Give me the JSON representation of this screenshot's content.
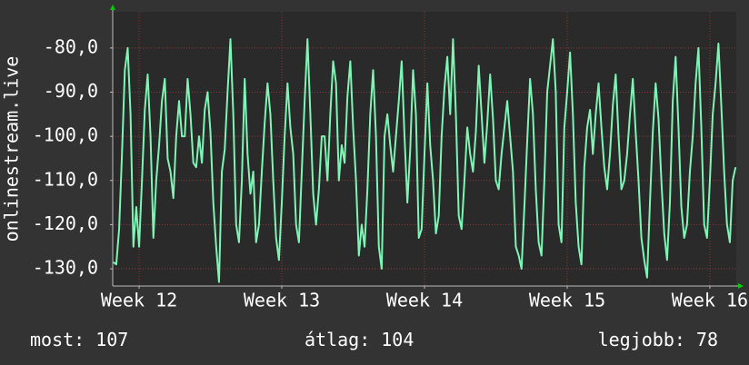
{
  "chart_data": {
    "type": "line",
    "y_label": "onlinestream.live",
    "xlim": [
      11.815,
      16.185
    ],
    "xticks": [
      {
        "value": 12,
        "label": "Week 12"
      },
      {
        "value": 13,
        "label": "Week 13"
      },
      {
        "value": 14,
        "label": "Week 14"
      },
      {
        "value": 15,
        "label": "Week 15"
      },
      {
        "value": 16,
        "label": "Week 16"
      }
    ],
    "ylim": [
      -133.9,
      -71.8
    ],
    "yticks": [
      {
        "value": -130,
        "label": "-130,0"
      },
      {
        "value": -120,
        "label": "-120,0"
      },
      {
        "value": -110,
        "label": "-110,0"
      },
      {
        "value": -100,
        "label": "-100,0"
      },
      {
        "value": -90,
        "label": "-90,0"
      },
      {
        "value": -80,
        "label": "-80,0"
      }
    ],
    "grid": true,
    "series": [
      {
        "color": "#7df5b5",
        "x": [
          11.82,
          11.84,
          11.86,
          11.88,
          11.9,
          11.92,
          11.94,
          11.96,
          11.98,
          12,
          12.02,
          12.04,
          12.06,
          12.08,
          12.1,
          12.12,
          12.14,
          12.16,
          12.18,
          12.2,
          12.22,
          12.24,
          12.26,
          12.28,
          12.3,
          12.32,
          12.34,
          12.36,
          12.38,
          12.4,
          12.42,
          12.44,
          12.46,
          12.48,
          12.5,
          12.52,
          12.54,
          12.56,
          12.58,
          12.6,
          12.62,
          12.64,
          12.66,
          12.68,
          12.7,
          12.72,
          12.74,
          12.76,
          12.78,
          12.8,
          12.82,
          12.84,
          12.86,
          12.88,
          12.9,
          12.92,
          12.94,
          12.96,
          12.98,
          13,
          13.02,
          13.04,
          13.06,
          13.08,
          13.1,
          13.12,
          13.14,
          13.16,
          13.18,
          13.2,
          13.22,
          13.24,
          13.26,
          13.28,
          13.3,
          13.32,
          13.34,
          13.36,
          13.38,
          13.4,
          13.42,
          13.44,
          13.46,
          13.48,
          13.5,
          13.52,
          13.54,
          13.56,
          13.58,
          13.6,
          13.62,
          13.64,
          13.66,
          13.68,
          13.7,
          13.72,
          13.74,
          13.76,
          13.78,
          13.8,
          13.82,
          13.84,
          13.86,
          13.88,
          13.9,
          13.92,
          13.94,
          13.96,
          13.98,
          14,
          14.02,
          14.04,
          14.06,
          14.08,
          14.1,
          14.12,
          14.14,
          14.16,
          14.18,
          14.2,
          14.22,
          14.24,
          14.26,
          14.28,
          14.3,
          14.32,
          14.34,
          14.36,
          14.38,
          14.4,
          14.42,
          14.44,
          14.46,
          14.48,
          14.5,
          14.52,
          14.54,
          14.56,
          14.58,
          14.6,
          14.62,
          14.64,
          14.66,
          14.68,
          14.7,
          14.72,
          14.74,
          14.76,
          14.78,
          14.8,
          14.82,
          14.84,
          14.86,
          14.88,
          14.9,
          14.92,
          14.94,
          14.96,
          14.98,
          15,
          15.02,
          15.04,
          15.06,
          15.08,
          15.1,
          15.12,
          15.14,
          15.16,
          15.18,
          15.2,
          15.22,
          15.24,
          15.26,
          15.28,
          15.3,
          15.32,
          15.34,
          15.36,
          15.38,
          15.4,
          15.42,
          15.44,
          15.46,
          15.48,
          15.5,
          15.52,
          15.54,
          15.56,
          15.58,
          15.6,
          15.62,
          15.64,
          15.66,
          15.68,
          15.7,
          15.72,
          15.74,
          15.76,
          15.78,
          15.8,
          15.82,
          15.84,
          15.86,
          15.88,
          15.9,
          15.92,
          15.94,
          15.96,
          15.98,
          16,
          16.02,
          16.04,
          16.06,
          16.08,
          16.1,
          16.12,
          16.14,
          16.16,
          16.18
        ],
        "values": [
          -128.5,
          -129,
          -121,
          -104,
          -85,
          -80,
          -95,
          -125,
          -116,
          -125,
          -110,
          -94,
          -86,
          -100,
          -123,
          -110,
          -102,
          -92,
          -87,
          -105,
          -108,
          -114,
          -100,
          -92,
          -100,
          -100,
          -87,
          -95,
          -106,
          -107,
          -100,
          -106,
          -94,
          -90,
          -99,
          -115,
          -125,
          -133,
          -108,
          -103,
          -90,
          -78,
          -95,
          -120,
          -124,
          -110,
          -87,
          -104,
          -113,
          -108,
          -124,
          -120,
          -108,
          -97,
          -88,
          -95,
          -110,
          -123,
          -128,
          -115,
          -100,
          -88,
          -98,
          -104,
          -120,
          -124,
          -108,
          -92,
          -78,
          -95,
          -113,
          -120,
          -112,
          -100,
          -100,
          -110,
          -95,
          -83,
          -88,
          -110,
          -102,
          -106,
          -91,
          -83,
          -98,
          -110,
          -127,
          -120,
          -125,
          -112,
          -95,
          -85,
          -100,
          -125,
          -130,
          -100,
          -95,
          -102,
          -108,
          -100,
          -92,
          -83,
          -100,
          -115,
          -103,
          -85,
          -95,
          -123,
          -121,
          -104,
          -88,
          -102,
          -110,
          -122,
          -118,
          -100,
          -89,
          -82,
          -95,
          -78,
          -95,
          -118,
          -121,
          -110,
          -98,
          -104,
          -108,
          -99,
          -84,
          -95,
          -106,
          -97,
          -86,
          -96,
          -110,
          -112,
          -104,
          -98,
          -92,
          -100,
          -108,
          -125,
          -127,
          -130,
          -116,
          -101,
          -87,
          -95,
          -112,
          -124,
          -127,
          -110,
          -90,
          -84,
          -78,
          -90,
          -120,
          -124,
          -98,
          -90,
          -81,
          -95,
          -115,
          -125,
          -129,
          -107,
          -98,
          -94,
          -104,
          -95,
          -88,
          -98,
          -107,
          -112,
          -104,
          -93,
          -86,
          -100,
          -112,
          -110,
          -104,
          -95,
          -87,
          -99,
          -110,
          -123,
          -128,
          -132,
          -115,
          -99,
          -88,
          -96,
          -110,
          -122,
          -128,
          -115,
          -92,
          -82,
          -98,
          -116,
          -123,
          -120,
          -108,
          -100,
          -88,
          -80,
          -98,
          -120,
          -123,
          -110,
          -95,
          -88,
          -79,
          -93,
          -108,
          -120,
          -124,
          -110,
          -107
        ]
      }
    ],
    "summary": [
      {
        "label": "most:",
        "value": 107
      },
      {
        "label": "átlag:",
        "value": 104
      },
      {
        "label": "legjobb:",
        "value": 78
      }
    ]
  }
}
